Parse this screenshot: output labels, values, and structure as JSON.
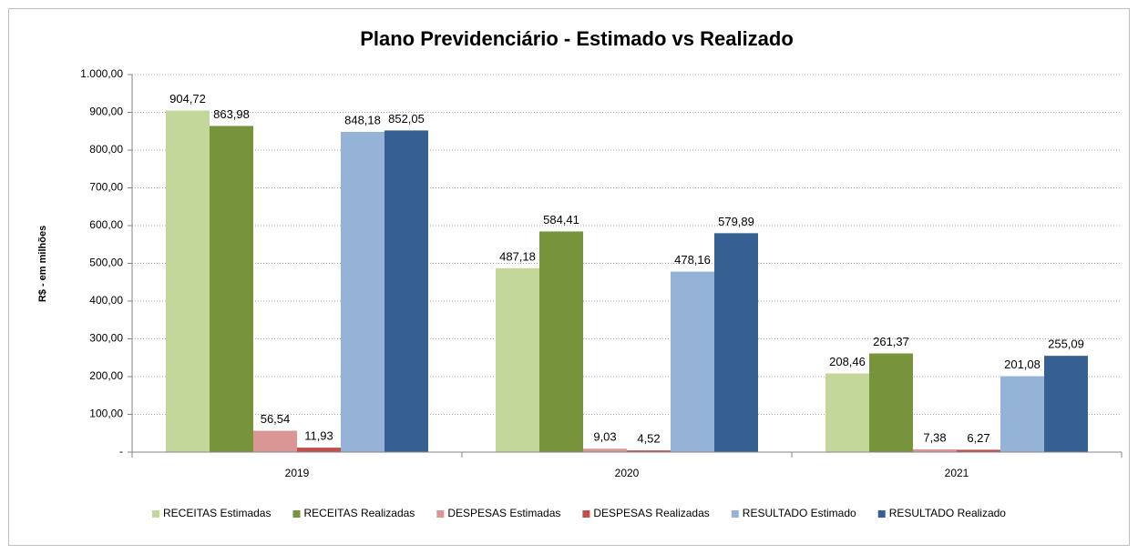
{
  "chart_data": {
    "type": "bar",
    "title": "Plano Previdenciário - Estimado vs Realizado",
    "y_label": "R$ - em milhões",
    "categories": [
      "2019",
      "2020",
      "2021"
    ],
    "series": [
      {
        "name": "RECEITAS Estimadas",
        "color": "#c4d79b",
        "values": [
          904.72,
          487.18,
          208.46
        ],
        "value_labels": [
          "904,72",
          "487,18",
          "208,46"
        ]
      },
      {
        "name": "RECEITAS Realizadas",
        "color": "#77933c",
        "values": [
          863.98,
          584.41,
          261.37
        ],
        "value_labels": [
          "863,98",
          "584,41",
          "261,37"
        ]
      },
      {
        "name": "DESPESAS Estimadas",
        "color": "#da9694",
        "values": [
          56.54,
          9.03,
          7.38
        ],
        "value_labels": [
          "56,54",
          "9,03",
          "7,38"
        ]
      },
      {
        "name": "DESPESAS Realizadas",
        "color": "#c0504d",
        "values": [
          11.93,
          4.52,
          6.27
        ],
        "value_labels": [
          "11,93",
          "4,52",
          "6,27"
        ]
      },
      {
        "name": "RESULTADO Estimado",
        "color": "#95b3d7",
        "values": [
          848.18,
          478.16,
          201.08
        ],
        "value_labels": [
          "848,18",
          "478,16",
          "201,08"
        ]
      },
      {
        "name": "RESULTADO Realizado",
        "color": "#366092",
        "values": [
          852.05,
          579.89,
          255.09
        ],
        "value_labels": [
          "852,05",
          "579,89",
          "255,09"
        ]
      }
    ],
    "ylim": [
      0,
      1000
    ],
    "yticks": [
      {
        "value": 0,
        "label": "-"
      },
      {
        "value": 100,
        "label": "100,00"
      },
      {
        "value": 200,
        "label": "200,00"
      },
      {
        "value": 300,
        "label": "300,00"
      },
      {
        "value": 400,
        "label": "400,00"
      },
      {
        "value": 500,
        "label": "500,00"
      },
      {
        "value": 600,
        "label": "600,00"
      },
      {
        "value": 700,
        "label": "700,00"
      },
      {
        "value": 800,
        "label": "800,00"
      },
      {
        "value": 900,
        "label": "900,00"
      },
      {
        "value": 1000,
        "label": "1.000,00"
      }
    ],
    "grid": true,
    "legend": "bottom"
  }
}
